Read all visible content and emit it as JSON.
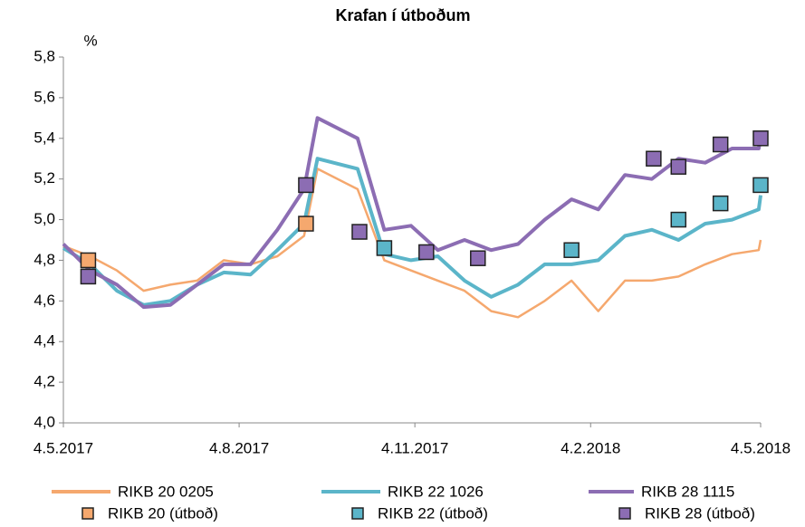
{
  "chart_data": {
    "type": "line",
    "title": "Krafan  í útboðum",
    "y_label": "%",
    "xlim": [
      "2017-05-04",
      "2018-05-04"
    ],
    "xticks": [
      {
        "value": "2017-05-04",
        "label": "4.5.2017"
      },
      {
        "value": "2017-08-04",
        "label": "4.8.2017"
      },
      {
        "value": "2017-11-04",
        "label": "4.11.2017"
      },
      {
        "value": "2018-02-04",
        "label": "4.2.2018"
      },
      {
        "value": "2018-05-04",
        "label": "4.5.2018"
      }
    ],
    "ylim": [
      4.0,
      5.8
    ],
    "yticks": [
      {
        "value": 4.0,
        "label": "4,0"
      },
      {
        "value": 4.2,
        "label": "4,2"
      },
      {
        "value": 4.4,
        "label": "4,4"
      },
      {
        "value": 4.6,
        "label": "4,6"
      },
      {
        "value": 4.8,
        "label": "4,8"
      },
      {
        "value": 5.0,
        "label": "5,0"
      },
      {
        "value": 5.2,
        "label": "5,2"
      },
      {
        "value": 5.4,
        "label": "5,4"
      },
      {
        "value": 5.6,
        "label": "5,6"
      },
      {
        "value": 5.8,
        "label": "5,8"
      }
    ],
    "series": [
      {
        "name": "RIKB 20 0205",
        "color": "#f5a86e",
        "mark": "line",
        "x": [
          "2017-05-04",
          "2017-05-18",
          "2017-06-01",
          "2017-06-15",
          "2017-06-29",
          "2017-07-13",
          "2017-07-27",
          "2017-08-10",
          "2017-08-24",
          "2017-09-07",
          "2017-09-14",
          "2017-10-05",
          "2017-10-19",
          "2017-11-02",
          "2017-11-16",
          "2017-11-30",
          "2017-12-14",
          "2017-12-28",
          "2018-01-11",
          "2018-01-25",
          "2018-02-08",
          "2018-02-22",
          "2018-03-08",
          "2018-03-22",
          "2018-04-05",
          "2018-04-19",
          "2018-05-03",
          "2018-05-04"
        ],
        "values": [
          4.87,
          4.82,
          4.75,
          4.65,
          4.68,
          4.7,
          4.8,
          4.78,
          4.82,
          4.92,
          5.25,
          5.15,
          4.8,
          4.75,
          4.7,
          4.65,
          4.55,
          4.52,
          4.6,
          4.7,
          4.55,
          4.7,
          4.7,
          4.72,
          4.78,
          4.83,
          4.85,
          4.9
        ]
      },
      {
        "name": "RIKB 22 1026",
        "color": "#5bb5c9",
        "mark": "line",
        "x": [
          "2017-05-04",
          "2017-05-18",
          "2017-06-01",
          "2017-06-15",
          "2017-06-29",
          "2017-07-13",
          "2017-07-27",
          "2017-08-10",
          "2017-08-24",
          "2017-09-07",
          "2017-09-14",
          "2017-10-05",
          "2017-10-19",
          "2017-11-02",
          "2017-11-16",
          "2017-11-30",
          "2017-12-14",
          "2017-12-28",
          "2018-01-11",
          "2018-01-25",
          "2018-02-08",
          "2018-02-22",
          "2018-03-08",
          "2018-03-22",
          "2018-04-05",
          "2018-04-19",
          "2018-05-03",
          "2018-05-04"
        ],
        "values": [
          4.86,
          4.78,
          4.65,
          4.58,
          4.6,
          4.68,
          4.74,
          4.73,
          4.85,
          4.98,
          5.3,
          5.25,
          4.83,
          4.8,
          4.82,
          4.7,
          4.62,
          4.68,
          4.78,
          4.78,
          4.8,
          4.92,
          4.95,
          4.9,
          4.98,
          5.0,
          5.05,
          5.12
        ]
      },
      {
        "name": "RIKB 28 1115",
        "color": "#8c6db3",
        "mark": "line",
        "x": [
          "2017-05-04",
          "2017-05-18",
          "2017-06-01",
          "2017-06-15",
          "2017-06-29",
          "2017-07-13",
          "2017-07-27",
          "2017-08-10",
          "2017-08-24",
          "2017-09-07",
          "2017-09-14",
          "2017-10-05",
          "2017-10-19",
          "2017-11-02",
          "2017-11-16",
          "2017-11-30",
          "2017-12-14",
          "2017-12-28",
          "2018-01-11",
          "2018-01-25",
          "2018-02-08",
          "2018-02-22",
          "2018-03-08",
          "2018-03-22",
          "2018-04-05",
          "2018-04-19",
          "2018-05-03",
          "2018-05-04"
        ],
        "values": [
          4.88,
          4.75,
          4.68,
          4.57,
          4.58,
          4.68,
          4.78,
          4.78,
          4.95,
          5.15,
          5.5,
          5.4,
          4.95,
          4.97,
          4.85,
          4.9,
          4.85,
          4.88,
          5.0,
          5.1,
          5.05,
          5.22,
          5.2,
          5.3,
          5.28,
          5.35,
          5.35,
          5.4
        ]
      },
      {
        "name": "RIKB 20 (útboð)",
        "color": "#f5a86e",
        "mark": "square",
        "x": [
          "2017-05-17",
          "2017-09-08"
        ],
        "values": [
          4.8,
          4.98
        ]
      },
      {
        "name": "RIKB 22 (útboð)",
        "color": "#5bb5c9",
        "mark": "square",
        "x": [
          "2017-10-19",
          "2018-01-25",
          "2018-03-22",
          "2018-04-13",
          "2018-05-04"
        ],
        "values": [
          4.86,
          4.85,
          5.0,
          5.08,
          5.17
        ]
      },
      {
        "name": "RIKB 28 (útboð)",
        "color": "#8c6db3",
        "mark": "square",
        "x": [
          "2017-05-17",
          "2017-09-08",
          "2017-10-06",
          "2017-11-10",
          "2017-12-07",
          "2018-03-09",
          "2018-03-22",
          "2018-04-13",
          "2018-05-04"
        ],
        "values": [
          4.72,
          5.17,
          4.94,
          4.84,
          4.81,
          5.3,
          5.26,
          5.37,
          5.4
        ]
      }
    ]
  }
}
